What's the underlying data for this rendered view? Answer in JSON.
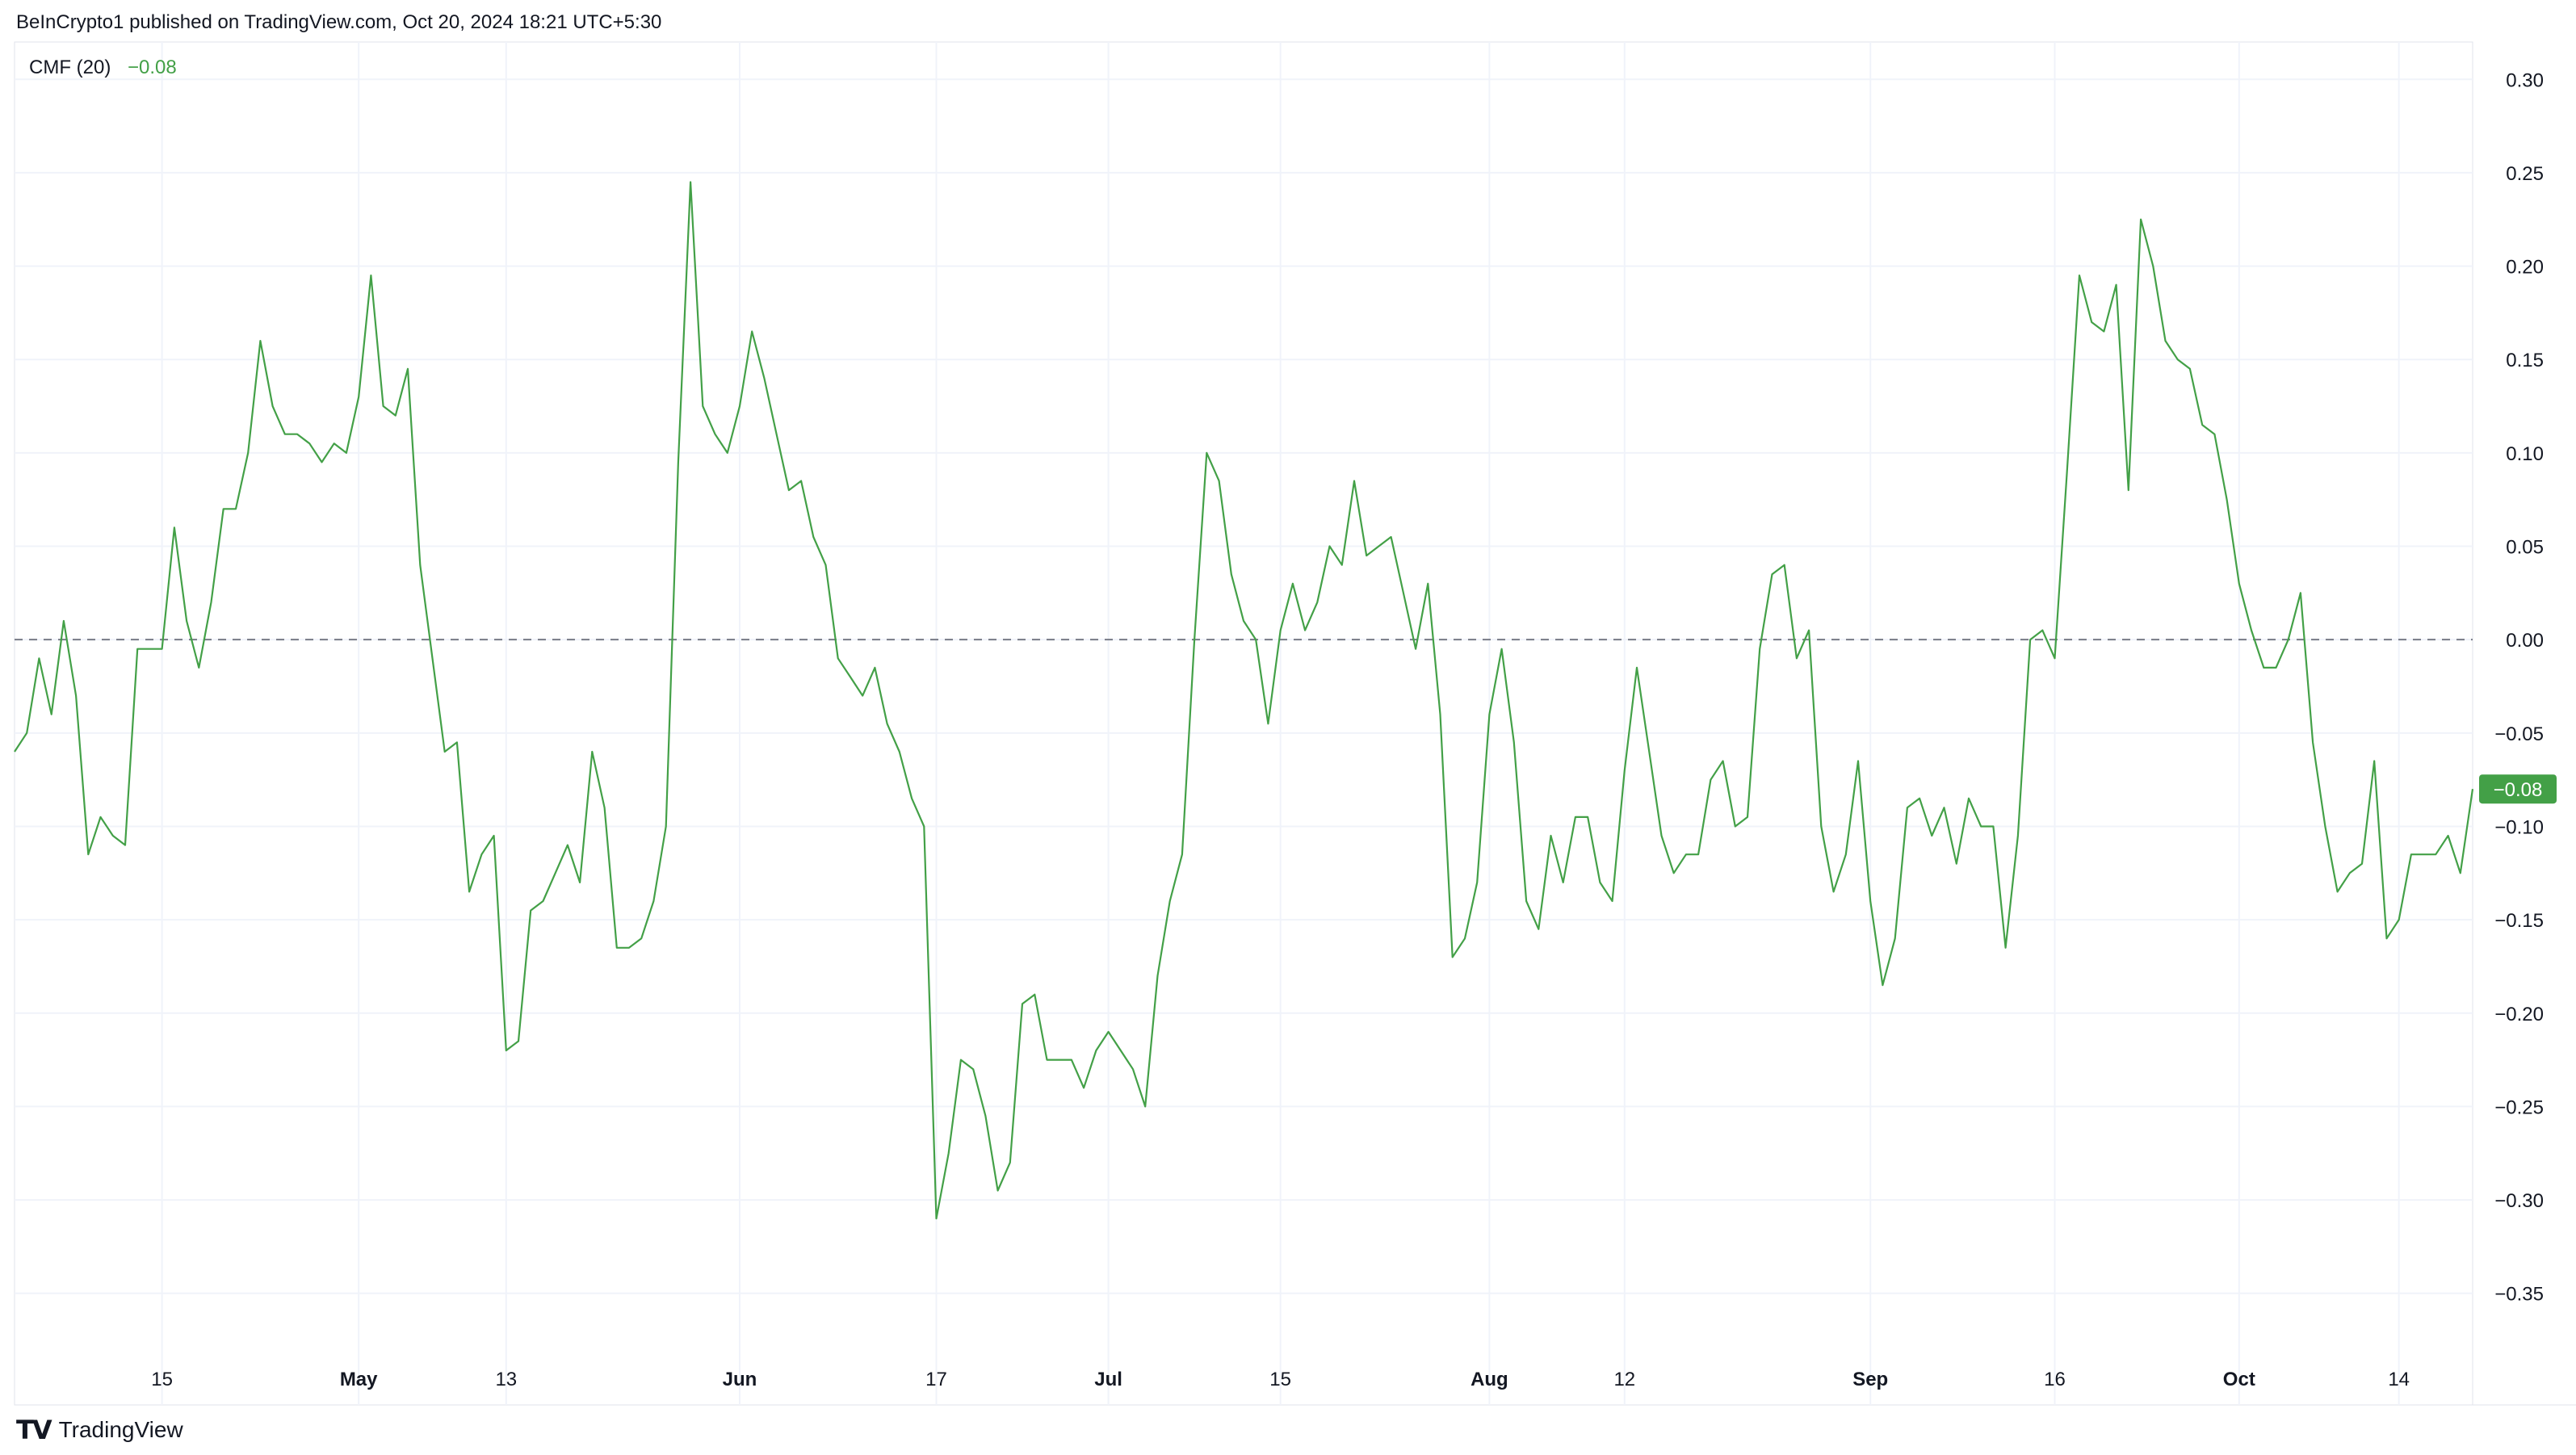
{
  "header": {
    "published_text": "BeInCrypto1 published on TradingView.com, Oct 20, 2024 18:21 UTC+5:30"
  },
  "legend": {
    "name": "CMF (20)",
    "value": "−0.08"
  },
  "footer": {
    "brand": "TradingView",
    "logo": "TV"
  },
  "colors": {
    "line": "#43a047",
    "grid": "#f0f3fa",
    "zero_line": "#787b86",
    "text": "#131722",
    "badge_bg": "#43a047"
  },
  "last_value_badge": "−0.08",
  "chart_data": {
    "type": "line",
    "title": "",
    "xlabel": "",
    "ylabel": "",
    "ylim": [
      -0.37,
      0.32
    ],
    "y_ticks": [
      "0.30",
      "0.25",
      "0.20",
      "0.15",
      "0.10",
      "0.05",
      "0.00",
      "−0.05",
      "−0.10",
      "−0.15",
      "−0.20",
      "−0.25",
      "−0.30",
      "−0.35"
    ],
    "y_tick_values": [
      0.3,
      0.25,
      0.2,
      0.15,
      0.1,
      0.05,
      0.0,
      -0.05,
      -0.1,
      -0.15,
      -0.2,
      -0.25,
      -0.3,
      -0.35
    ],
    "x_range": [
      0,
      200
    ],
    "x_ticks": [
      {
        "label": "15",
        "x": 12,
        "bold": false
      },
      {
        "label": "May",
        "x": 28,
        "bold": true
      },
      {
        "label": "13",
        "x": 40,
        "bold": false
      },
      {
        "label": "Jun",
        "x": 59,
        "bold": true
      },
      {
        "label": "17",
        "x": 75,
        "bold": false
      },
      {
        "label": "Jul",
        "x": 89,
        "bold": true
      },
      {
        "label": "15",
        "x": 103,
        "bold": false
      },
      {
        "label": "Aug",
        "x": 120,
        "bold": true
      },
      {
        "label": "12",
        "x": 131,
        "bold": false
      },
      {
        "label": "Sep",
        "x": 151,
        "bold": true
      },
      {
        "label": "16",
        "x": 166,
        "bold": false
      },
      {
        "label": "Oct",
        "x": 181,
        "bold": true
      },
      {
        "label": "14",
        "x": 194,
        "bold": false
      }
    ],
    "zero_line": 0.0,
    "grid": true,
    "series": [
      {
        "values": [
          -0.06,
          -0.05,
          -0.01,
          -0.04,
          0.01,
          -0.03,
          -0.115,
          -0.095,
          -0.105,
          -0.11,
          -0.005,
          -0.005,
          -0.005,
          0.06,
          0.01,
          -0.015,
          0.02,
          0.07,
          0.07,
          0.1,
          0.16,
          0.125,
          0.11,
          0.11,
          0.105,
          0.095,
          0.105,
          0.1,
          0.13,
          0.195,
          0.125,
          0.12,
          0.145,
          0.04,
          -0.01,
          -0.06,
          -0.055,
          -0.135,
          -0.115,
          -0.105,
          -0.22,
          -0.215,
          -0.145,
          -0.14,
          -0.125,
          -0.11,
          -0.13,
          -0.06,
          -0.09,
          -0.165,
          -0.165,
          -0.16,
          -0.14,
          -0.1,
          0.095,
          0.245,
          0.125,
          0.11,
          0.1,
          0.125,
          0.165,
          0.14,
          0.11,
          0.08,
          0.085,
          0.055,
          0.04,
          -0.01,
          -0.02,
          -0.03,
          -0.015,
          -0.045,
          -0.06,
          -0.085,
          -0.1,
          -0.31,
          -0.275,
          -0.225,
          -0.23,
          -0.255,
          -0.295,
          -0.28,
          -0.195,
          -0.19,
          -0.225,
          -0.225,
          -0.225,
          -0.24,
          -0.22,
          -0.21,
          -0.22,
          -0.23,
          -0.25,
          -0.18,
          -0.14,
          -0.115,
          0.0,
          0.1,
          0.085,
          0.035,
          0.01,
          0.0,
          -0.045,
          0.005,
          0.03,
          0.005,
          0.02,
          0.05,
          0.04,
          0.085,
          0.045,
          0.05,
          0.055,
          0.025,
          -0.005,
          0.03,
          -0.04,
          -0.17,
          -0.16,
          -0.13,
          -0.04,
          -0.005,
          -0.055,
          -0.14,
          -0.155,
          -0.105,
          -0.13,
          -0.095,
          -0.095,
          -0.13,
          -0.14,
          -0.07,
          -0.015,
          -0.06,
          -0.105,
          -0.125,
          -0.115,
          -0.115,
          -0.075,
          -0.065,
          -0.1,
          -0.095,
          -0.005,
          0.035,
          0.04,
          -0.01,
          0.005,
          -0.1,
          -0.135,
          -0.115,
          -0.065,
          -0.14,
          -0.185,
          -0.16,
          -0.09,
          -0.085,
          -0.105,
          -0.09,
          -0.12,
          -0.085,
          -0.1,
          -0.1,
          -0.165,
          -0.105,
          0.0,
          0.005,
          -0.01,
          0.09,
          0.195,
          0.17,
          0.165,
          0.19,
          0.08,
          0.225,
          0.2,
          0.16,
          0.15,
          0.145,
          0.115,
          0.11,
          0.075,
          0.03,
          0.005,
          -0.015,
          -0.015,
          0.0,
          0.025,
          -0.055,
          -0.1,
          -0.135,
          -0.125,
          -0.12,
          -0.065,
          -0.16,
          -0.15,
          -0.115,
          -0.115,
          -0.115,
          -0.105,
          -0.125,
          -0.08
        ]
      }
    ]
  }
}
